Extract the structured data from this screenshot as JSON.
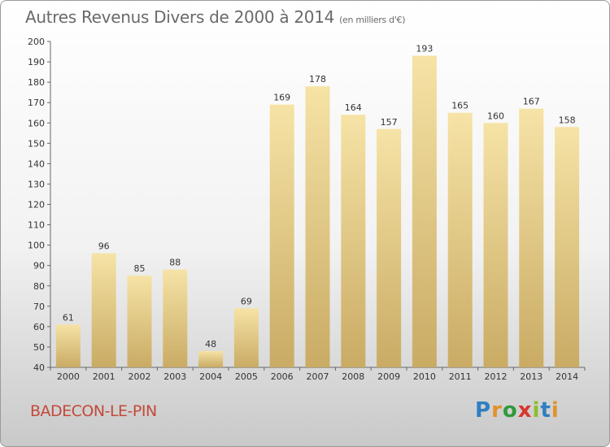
{
  "title": {
    "main": "Autres Revenus Divers de 2000 à 2014",
    "unit": "(en milliers d'€)"
  },
  "commune": "BADECON-LE-PIN",
  "logo": [
    "P",
    "r",
    "o",
    "x",
    "i",
    "t",
    "i"
  ],
  "chart_data": {
    "type": "bar",
    "title": "Autres Revenus Divers de 2000 à 2014",
    "subtitle": "(en milliers d'€)",
    "categories": [
      "2000",
      "2001",
      "2002",
      "2003",
      "2004",
      "2005",
      "2006",
      "2007",
      "2008",
      "2009",
      "2010",
      "2011",
      "2012",
      "2013",
      "2014"
    ],
    "values": [
      61,
      96,
      85,
      88,
      48,
      69,
      169,
      178,
      164,
      157,
      193,
      165,
      160,
      167,
      158
    ],
    "ylim": [
      40,
      200
    ],
    "yticks": [
      40,
      50,
      60,
      70,
      80,
      90,
      100,
      110,
      120,
      130,
      140,
      150,
      160,
      170,
      180,
      190,
      200
    ],
    "grid": false,
    "colors": {
      "bar_light": "#f6e3a6",
      "bar_dark": "#c9ab64"
    }
  }
}
